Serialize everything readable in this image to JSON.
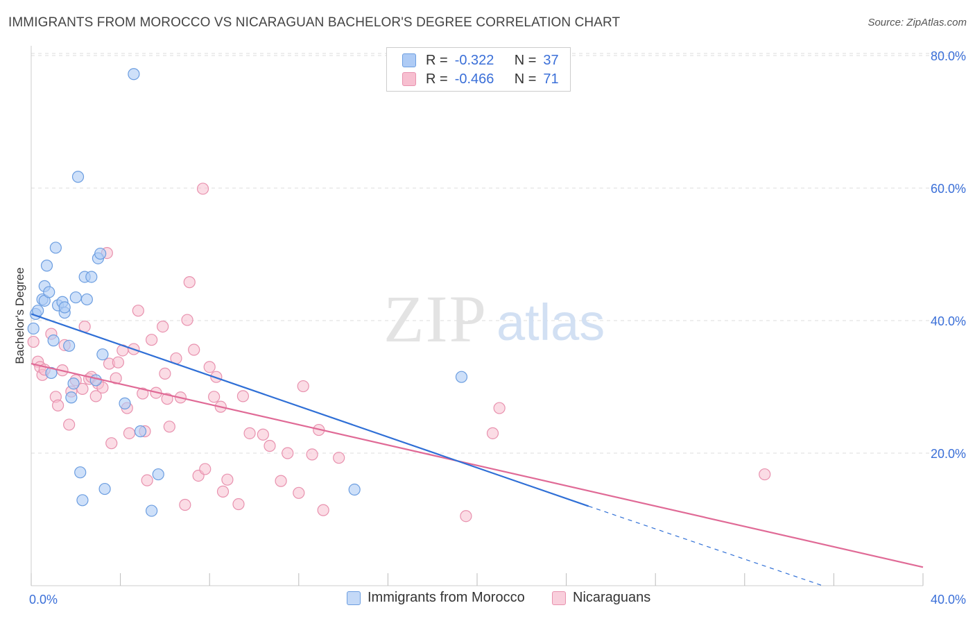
{
  "header": {
    "title": "IMMIGRANTS FROM MOROCCO VS NICARAGUAN BACHELOR'S DEGREE CORRELATION CHART",
    "source": "Source: ZipAtlas.com"
  },
  "watermark": {
    "zip": "ZIP",
    "atlas": "atlas"
  },
  "legend": {
    "rows": [
      {
        "r_label": "R =",
        "r_value": "-0.322",
        "n_label": "N =",
        "n_value": "37"
      },
      {
        "r_label": "R =",
        "r_value": "-0.466",
        "n_label": "N =",
        "n_value": "71"
      }
    ]
  },
  "colors": {
    "blue_fill": "#aecbf5",
    "blue_stroke": "#6b9de0",
    "blue_line": "#2f6fd6",
    "pink_fill": "#f7bfd0",
    "pink_stroke": "#e891ae",
    "pink_line": "#e06a96",
    "axis_text": "#3a6fd8",
    "grid": "#dddddd"
  },
  "chart_data": {
    "type": "scatter",
    "title": "IMMIGRANTS FROM MOROCCO VS NICARAGUAN BACHELOR'S DEGREE CORRELATION CHART",
    "xlabel": "",
    "ylabel": "Bachelor's Degree",
    "xlim": [
      0,
      40
    ],
    "ylim": [
      0,
      80
    ],
    "x_tick_labels": [
      "0.0%",
      "40.0%"
    ],
    "y_ticks": [
      20,
      40,
      60,
      80
    ],
    "y_tick_labels": [
      "20.0%",
      "40.0%",
      "60.0%",
      "80.0%"
    ],
    "grid": true,
    "series": [
      {
        "name": "Immigrants from Morocco",
        "points": [
          [
            0.2,
            41.0
          ],
          [
            0.3,
            41.5
          ],
          [
            0.5,
            43.2
          ],
          [
            0.6,
            43.0
          ],
          [
            0.6,
            45.2
          ],
          [
            0.7,
            48.3
          ],
          [
            0.8,
            44.3
          ],
          [
            0.9,
            32.1
          ],
          [
            1.0,
            37.0
          ],
          [
            1.1,
            51.0
          ],
          [
            1.2,
            42.3
          ],
          [
            1.4,
            42.8
          ],
          [
            1.5,
            41.2
          ],
          [
            1.5,
            42.0
          ],
          [
            1.7,
            36.2
          ],
          [
            1.8,
            28.4
          ],
          [
            1.9,
            30.5
          ],
          [
            2.0,
            43.5
          ],
          [
            2.1,
            61.7
          ],
          [
            2.2,
            17.1
          ],
          [
            2.3,
            12.9
          ],
          [
            2.4,
            46.6
          ],
          [
            2.5,
            43.2
          ],
          [
            2.7,
            46.6
          ],
          [
            2.9,
            31.0
          ],
          [
            3.0,
            49.4
          ],
          [
            3.1,
            50.1
          ],
          [
            3.2,
            34.9
          ],
          [
            3.3,
            14.6
          ],
          [
            4.2,
            27.5
          ],
          [
            4.6,
            77.2
          ],
          [
            4.9,
            23.3
          ],
          [
            5.4,
            11.3
          ],
          [
            5.7,
            16.8
          ],
          [
            14.5,
            14.5
          ],
          [
            19.3,
            31.5
          ],
          [
            0.1,
            38.8
          ]
        ],
        "regression": {
          "x0": 0,
          "y0": 41.0,
          "x1": 25,
          "y1": 12.0,
          "dashed_to_x": 35.5,
          "dashed_to_y": 0.0
        }
      },
      {
        "name": "Nicaraguans",
        "points": [
          [
            0.1,
            36.8
          ],
          [
            0.3,
            33.8
          ],
          [
            0.4,
            33.0
          ],
          [
            0.5,
            31.8
          ],
          [
            0.6,
            32.6
          ],
          [
            0.9,
            38.0
          ],
          [
            1.1,
            28.5
          ],
          [
            1.2,
            27.2
          ],
          [
            1.4,
            32.5
          ],
          [
            1.5,
            36.3
          ],
          [
            1.7,
            24.3
          ],
          [
            1.8,
            29.3
          ],
          [
            2.0,
            31.0
          ],
          [
            2.3,
            29.7
          ],
          [
            2.4,
            39.1
          ],
          [
            2.6,
            31.2
          ],
          [
            2.7,
            31.5
          ],
          [
            2.9,
            28.6
          ],
          [
            3.0,
            30.5
          ],
          [
            3.2,
            29.9
          ],
          [
            3.4,
            50.2
          ],
          [
            3.5,
            33.5
          ],
          [
            3.6,
            21.5
          ],
          [
            3.8,
            31.3
          ],
          [
            3.9,
            33.7
          ],
          [
            4.1,
            35.5
          ],
          [
            4.3,
            26.8
          ],
          [
            4.4,
            23.0
          ],
          [
            4.6,
            35.7
          ],
          [
            4.8,
            41.5
          ],
          [
            5.0,
            29.0
          ],
          [
            5.1,
            23.3
          ],
          [
            5.2,
            15.9
          ],
          [
            5.4,
            37.1
          ],
          [
            5.6,
            29.1
          ],
          [
            5.9,
            39.1
          ],
          [
            6.0,
            32.0
          ],
          [
            6.1,
            28.2
          ],
          [
            6.2,
            24.0
          ],
          [
            6.5,
            34.3
          ],
          [
            6.7,
            28.4
          ],
          [
            6.9,
            12.2
          ],
          [
            7.0,
            40.1
          ],
          [
            7.1,
            45.8
          ],
          [
            7.3,
            35.6
          ],
          [
            7.5,
            16.6
          ],
          [
            7.7,
            59.9
          ],
          [
            7.8,
            17.6
          ],
          [
            8.0,
            33.0
          ],
          [
            8.2,
            28.5
          ],
          [
            8.3,
            31.5
          ],
          [
            8.5,
            27.0
          ],
          [
            8.6,
            14.2
          ],
          [
            8.8,
            16.0
          ],
          [
            9.3,
            12.3
          ],
          [
            9.5,
            28.6
          ],
          [
            9.8,
            23.0
          ],
          [
            10.4,
            22.8
          ],
          [
            10.7,
            21.1
          ],
          [
            11.2,
            15.8
          ],
          [
            11.5,
            20.0
          ],
          [
            12.0,
            14.0
          ],
          [
            12.2,
            30.1
          ],
          [
            12.6,
            19.8
          ],
          [
            12.9,
            23.5
          ],
          [
            13.1,
            11.4
          ],
          [
            13.8,
            19.3
          ],
          [
            19.5,
            10.5
          ],
          [
            20.7,
            23.0
          ],
          [
            21.0,
            26.8
          ],
          [
            32.9,
            16.8
          ]
        ],
        "regression": {
          "x0": 0,
          "y0": 33.5,
          "x1": 40,
          "y1": 2.8
        }
      }
    ]
  }
}
